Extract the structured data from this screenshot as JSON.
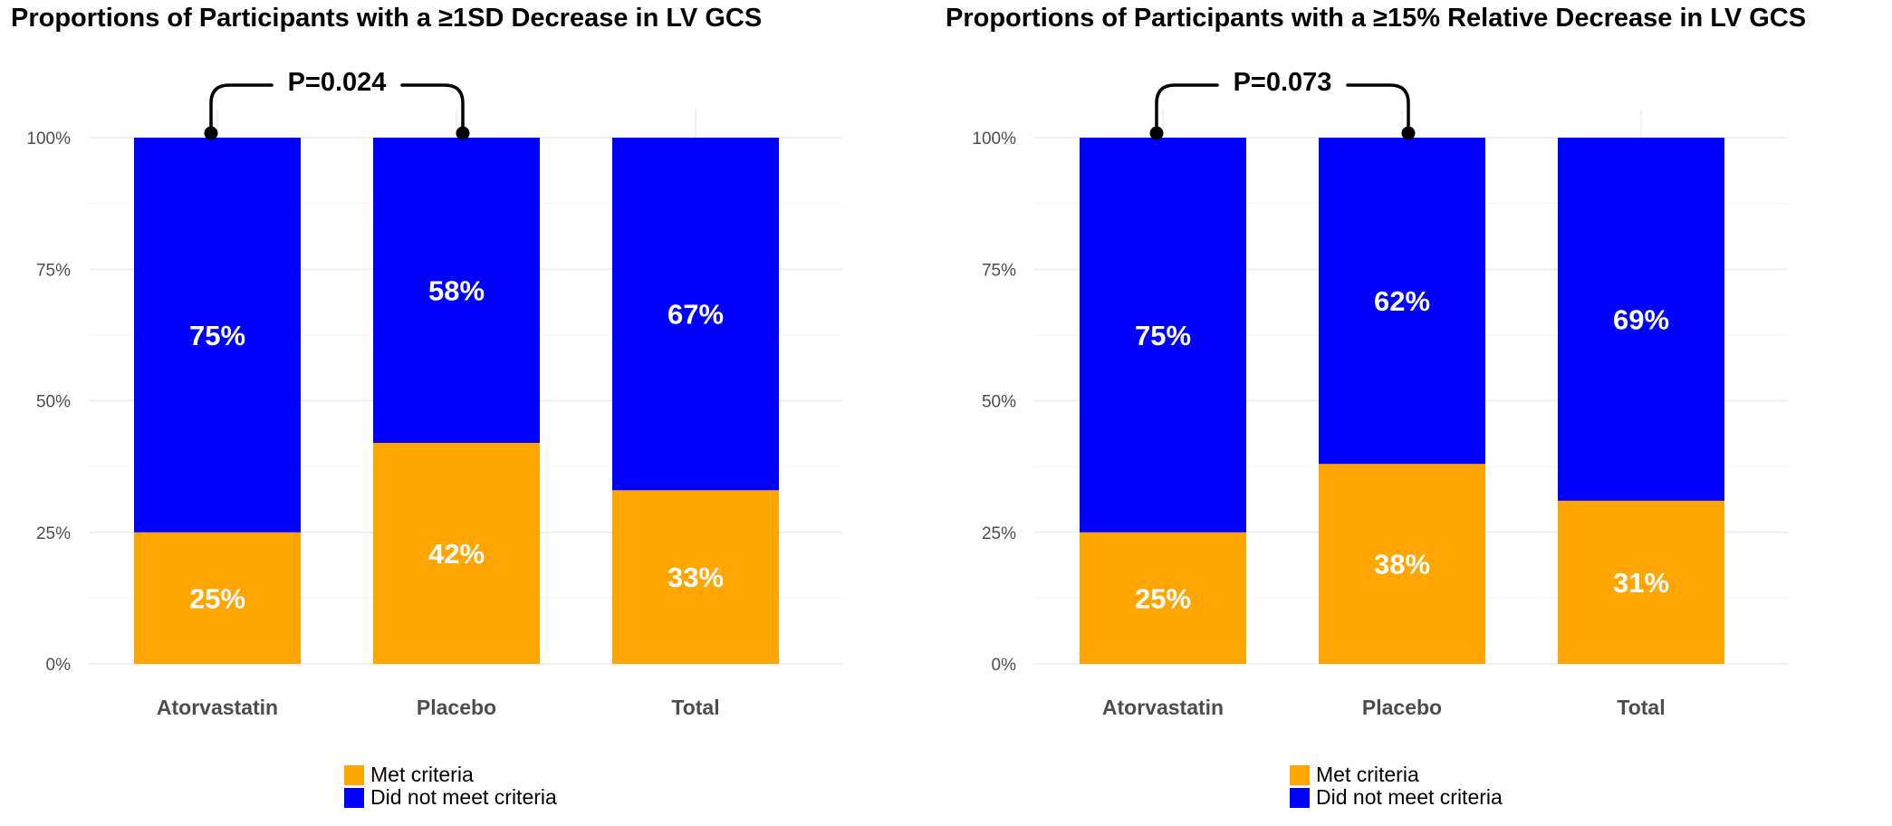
{
  "chart_data": [
    {
      "type": "bar",
      "stacked": true,
      "title": "Proportions of Participants with a ≥1SD Decrease in LV GCS",
      "categories": [
        "Atorvastatin",
        "Placebo",
        "Total"
      ],
      "series": [
        {
          "name": "Met criteria",
          "color": "#FFA500",
          "values": [
            25,
            42,
            33
          ],
          "labels": [
            "25%",
            "42%",
            "33%"
          ]
        },
        {
          "name": "Did not meet criteria",
          "color": "#0000FF",
          "values": [
            75,
            58,
            67
          ],
          "labels": [
            "75%",
            "58%",
            "67%"
          ]
        }
      ],
      "yticks": [
        "0%",
        "25%",
        "50%",
        "75%",
        "100%"
      ],
      "ytick_values": [
        0,
        25,
        50,
        75,
        100
      ],
      "ylim": [
        0,
        115
      ],
      "xlabel": "",
      "ylabel": "",
      "grid": true,
      "legend_position": "bottom",
      "annotation": {
        "text": "P=0.024",
        "from": "Atorvastatin",
        "to": "Placebo"
      }
    },
    {
      "type": "bar",
      "stacked": true,
      "title": "Proportions of Participants with a ≥15% Relative Decrease in LV GCS",
      "categories": [
        "Atorvastatin",
        "Placebo",
        "Total"
      ],
      "series": [
        {
          "name": "Met criteria",
          "color": "#FFA500",
          "values": [
            25,
            38,
            31
          ],
          "labels": [
            "25%",
            "38%",
            "31%"
          ]
        },
        {
          "name": "Did not meet criteria",
          "color": "#0000FF",
          "values": [
            75,
            62,
            69
          ],
          "labels": [
            "75%",
            "62%",
            "69%"
          ]
        }
      ],
      "yticks": [
        "0%",
        "25%",
        "50%",
        "75%",
        "100%"
      ],
      "ytick_values": [
        0,
        25,
        50,
        75,
        100
      ],
      "ylim": [
        0,
        115
      ],
      "xlabel": "",
      "ylabel": "",
      "grid": true,
      "legend_position": "bottom",
      "annotation": {
        "text": "P=0.073",
        "from": "Atorvastatin",
        "to": "Placebo"
      }
    }
  ]
}
